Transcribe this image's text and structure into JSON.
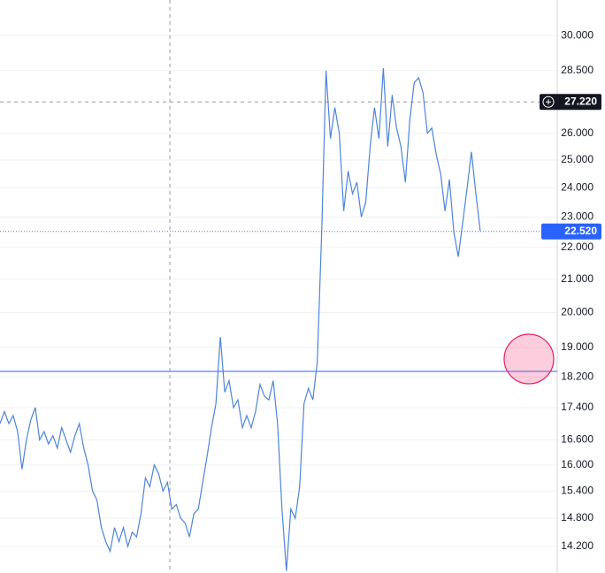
{
  "chart_data": {
    "type": "line",
    "log_scale": true,
    "grid": true,
    "series": [
      {
        "color": "#4d84d9",
        "values": [
          17.0,
          17.3,
          17.0,
          17.2,
          16.8,
          15.9,
          16.6,
          17.1,
          17.4,
          16.6,
          16.8,
          16.5,
          16.7,
          16.4,
          16.9,
          16.6,
          16.3,
          16.7,
          17.0,
          16.4,
          16.0,
          15.4,
          15.2,
          14.6,
          14.3,
          14.1,
          14.6,
          14.3,
          14.6,
          14.2,
          14.5,
          14.4,
          14.9,
          15.7,
          15.5,
          16.0,
          15.8,
          15.4,
          15.6,
          15.0,
          15.1,
          14.8,
          14.7,
          14.4,
          14.9,
          15.0,
          15.6,
          16.2,
          16.9,
          17.5,
          19.3,
          17.8,
          18.1,
          17.4,
          17.6,
          16.9,
          17.2,
          16.9,
          17.3,
          18.0,
          17.7,
          17.6,
          18.1,
          17.0,
          15.0,
          13.7,
          15.0,
          14.8,
          15.5,
          17.5,
          17.9,
          17.6,
          18.6,
          22.5,
          28.5,
          25.8,
          27.0,
          26.0,
          23.2,
          24.6,
          23.8,
          24.2,
          23.0,
          23.5,
          25.5,
          27.0,
          25.8,
          28.6,
          25.5,
          27.5,
          26.2,
          25.5,
          24.2,
          26.5,
          28.0,
          28.2,
          27.6,
          26.0,
          26.2,
          25.2,
          24.5,
          23.2,
          24.3,
          22.5,
          21.7,
          22.8,
          24.0,
          25.3,
          23.8,
          22.52
        ]
      }
    ],
    "ylim": [
      13.66,
      31.6
    ],
    "yticks": [
      {
        "value": 30,
        "label": "30.000"
      },
      {
        "value": 28.5,
        "label": "28.500"
      },
      {
        "value": 26,
        "label": "26.000"
      },
      {
        "value": 25,
        "label": "25.000"
      },
      {
        "value": 24,
        "label": "24.000"
      },
      {
        "value": 23,
        "label": "23.000"
      },
      {
        "value": 22,
        "label": "22.000"
      },
      {
        "value": 21,
        "label": "21.000"
      },
      {
        "value": 20,
        "label": "20.000"
      },
      {
        "value": 19,
        "label": "19.000"
      },
      {
        "value": 18.2,
        "label": "18.200"
      },
      {
        "value": 17.4,
        "label": "17.400"
      },
      {
        "value": 16.6,
        "label": "16.600"
      },
      {
        "value": 16,
        "label": "16.000"
      },
      {
        "value": 15.4,
        "label": "15.400"
      },
      {
        "value": 14.8,
        "label": "14.800"
      },
      {
        "value": 14.2,
        "label": "14.200"
      }
    ],
    "crosshair": {
      "value": 27.22,
      "label": "27.220"
    },
    "last_price": {
      "value": 22.52,
      "label": "22.520"
    },
    "horizontal_line": 18.35
  }
}
